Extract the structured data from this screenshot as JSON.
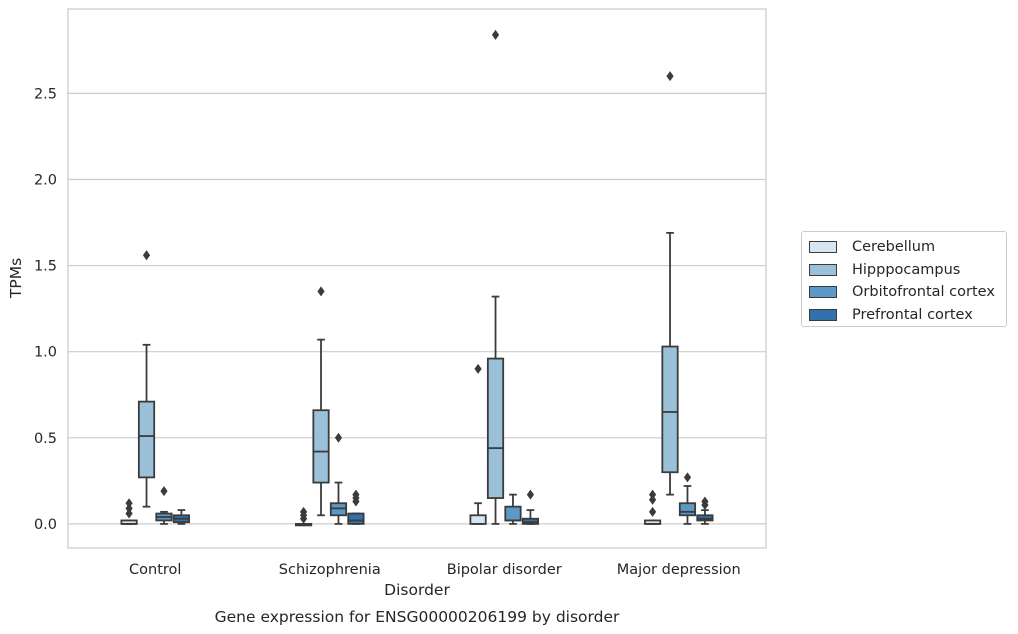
{
  "chart_data": {
    "type": "box",
    "title": "Gene expression for ENSG00000206199 by disorder",
    "xlabel": "Disorder",
    "ylabel": "TPMs",
    "ylim": [
      -0.14,
      2.99
    ],
    "yticks": [
      "0.0",
      "0.5",
      "1.0",
      "1.5",
      "2.0",
      "2.5"
    ],
    "grid": "horizontal",
    "legend_position": "right",
    "categories": [
      "Control",
      "Schizophrenia",
      "Bipolar disorder",
      "Major depression"
    ],
    "series": [
      {
        "name": "Cerebellum",
        "color": "#d6e5f2",
        "boxes": [
          {
            "whislo": 0.0,
            "q1": 0.0,
            "med": 0.0,
            "q3": 0.02,
            "whishi": 0.02,
            "fliers": [
              0.06,
              0.09,
              0.12
            ]
          },
          {
            "whislo": 0.0,
            "q1": 0.0,
            "med": 0.0,
            "q3": 0.0,
            "whishi": 0.0,
            "fliers": [
              0.03,
              0.05,
              0.07
            ]
          },
          {
            "whislo": 0.0,
            "q1": 0.0,
            "med": 0.0,
            "q3": 0.05,
            "whishi": 0.12,
            "fliers": [
              0.9
            ]
          },
          {
            "whislo": 0.0,
            "q1": 0.0,
            "med": 0.0,
            "q3": 0.02,
            "whishi": 0.02,
            "fliers": [
              0.07,
              0.14,
              0.17
            ]
          }
        ]
      },
      {
        "name": "Hipppocampus",
        "color": "#9ac1d9",
        "boxes": [
          {
            "whislo": 0.1,
            "q1": 0.27,
            "med": 0.51,
            "q3": 0.71,
            "whishi": 1.04,
            "fliers": [
              1.56
            ]
          },
          {
            "whislo": 0.05,
            "q1": 0.24,
            "med": 0.42,
            "q3": 0.66,
            "whishi": 1.07,
            "fliers": [
              1.35
            ]
          },
          {
            "whislo": 0.0,
            "q1": 0.15,
            "med": 0.44,
            "q3": 0.96,
            "whishi": 1.32,
            "fliers": [
              2.84
            ]
          },
          {
            "whislo": 0.17,
            "q1": 0.3,
            "med": 0.65,
            "q3": 1.03,
            "whishi": 1.69,
            "fliers": [
              2.6
            ]
          }
        ]
      },
      {
        "name": "Orbitofrontal cortex",
        "color": "#5b9ac6",
        "boxes": [
          {
            "whislo": 0.0,
            "q1": 0.02,
            "med": 0.04,
            "q3": 0.06,
            "whishi": 0.07,
            "fliers": [
              0.19
            ]
          },
          {
            "whislo": 0.0,
            "q1": 0.05,
            "med": 0.09,
            "q3": 0.12,
            "whishi": 0.24,
            "fliers": [
              0.5
            ]
          },
          {
            "whislo": 0.0,
            "q1": 0.02,
            "med": 0.02,
            "q3": 0.1,
            "whishi": 0.17,
            "fliers": []
          },
          {
            "whislo": 0.0,
            "q1": 0.05,
            "med": 0.07,
            "q3": 0.12,
            "whishi": 0.22,
            "fliers": [
              0.27
            ]
          }
        ]
      },
      {
        "name": "Prefrontal cortex",
        "color": "#3371ad",
        "boxes": [
          {
            "whislo": 0.0,
            "q1": 0.01,
            "med": 0.03,
            "q3": 0.05,
            "whishi": 0.08,
            "fliers": []
          },
          {
            "whislo": 0.0,
            "q1": 0.0,
            "med": 0.02,
            "q3": 0.06,
            "whishi": 0.06,
            "fliers": [
              0.13,
              0.15,
              0.17
            ]
          },
          {
            "whislo": 0.0,
            "q1": 0.0,
            "med": 0.01,
            "q3": 0.03,
            "whishi": 0.08,
            "fliers": [
              0.17
            ]
          },
          {
            "whislo": 0.0,
            "q1": 0.02,
            "med": 0.03,
            "q3": 0.05,
            "whishi": 0.08,
            "fliers": [
              0.11,
              0.13
            ]
          }
        ]
      }
    ]
  }
}
